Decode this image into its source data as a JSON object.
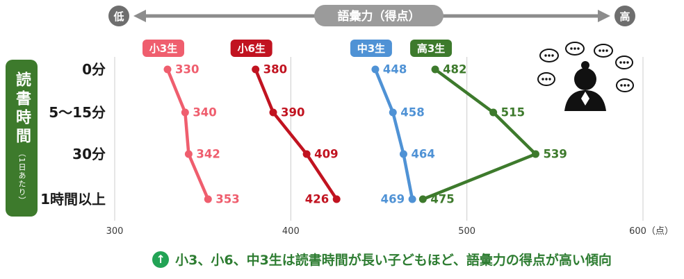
{
  "top_axis": {
    "title": "語彙力（得点）",
    "left_label": "低",
    "right_label": "高"
  },
  "y_axis_box": {
    "title": "読書時間",
    "subtitle": "（1日あたり）"
  },
  "chart_data": {
    "type": "line",
    "orientation": "horizontal",
    "title": "語彙力（得点）",
    "categories": [
      "0分",
      "5〜15分",
      "30分",
      "1時間以上"
    ],
    "x_axis": {
      "range": [
        300,
        600
      ],
      "ticks": [
        300,
        400,
        500,
        600
      ],
      "tick_labels": [
        "300",
        "400",
        "500",
        "600（点）"
      ]
    },
    "grid": "vertical",
    "legend_position": "above-first-point",
    "series": [
      {
        "name": "小3生",
        "color": "#ef5e6e",
        "values": [
          330,
          340,
          342,
          353
        ],
        "label_sides": [
          "right",
          "right",
          "right",
          "right"
        ]
      },
      {
        "name": "小6生",
        "color": "#c11320",
        "values": [
          380,
          390,
          409,
          426
        ],
        "label_sides": [
          "right",
          "right",
          "right",
          "left"
        ]
      },
      {
        "name": "中3生",
        "color": "#4f92d5",
        "values": [
          448,
          458,
          464,
          469
        ],
        "label_sides": [
          "right",
          "right",
          "right",
          "left"
        ]
      },
      {
        "name": "高3生",
        "color": "#3d7a2c",
        "values": [
          482,
          515,
          539,
          475
        ],
        "label_sides": [
          "right",
          "right",
          "right",
          "right"
        ]
      }
    ]
  },
  "decoration": {
    "person_icon": "person-with-speech-bubbles"
  },
  "footer": {
    "icon": "↑",
    "note": "小3、小6、中3生は読書時間が長い子どもほど、語彙力の得点が高い傾向"
  }
}
